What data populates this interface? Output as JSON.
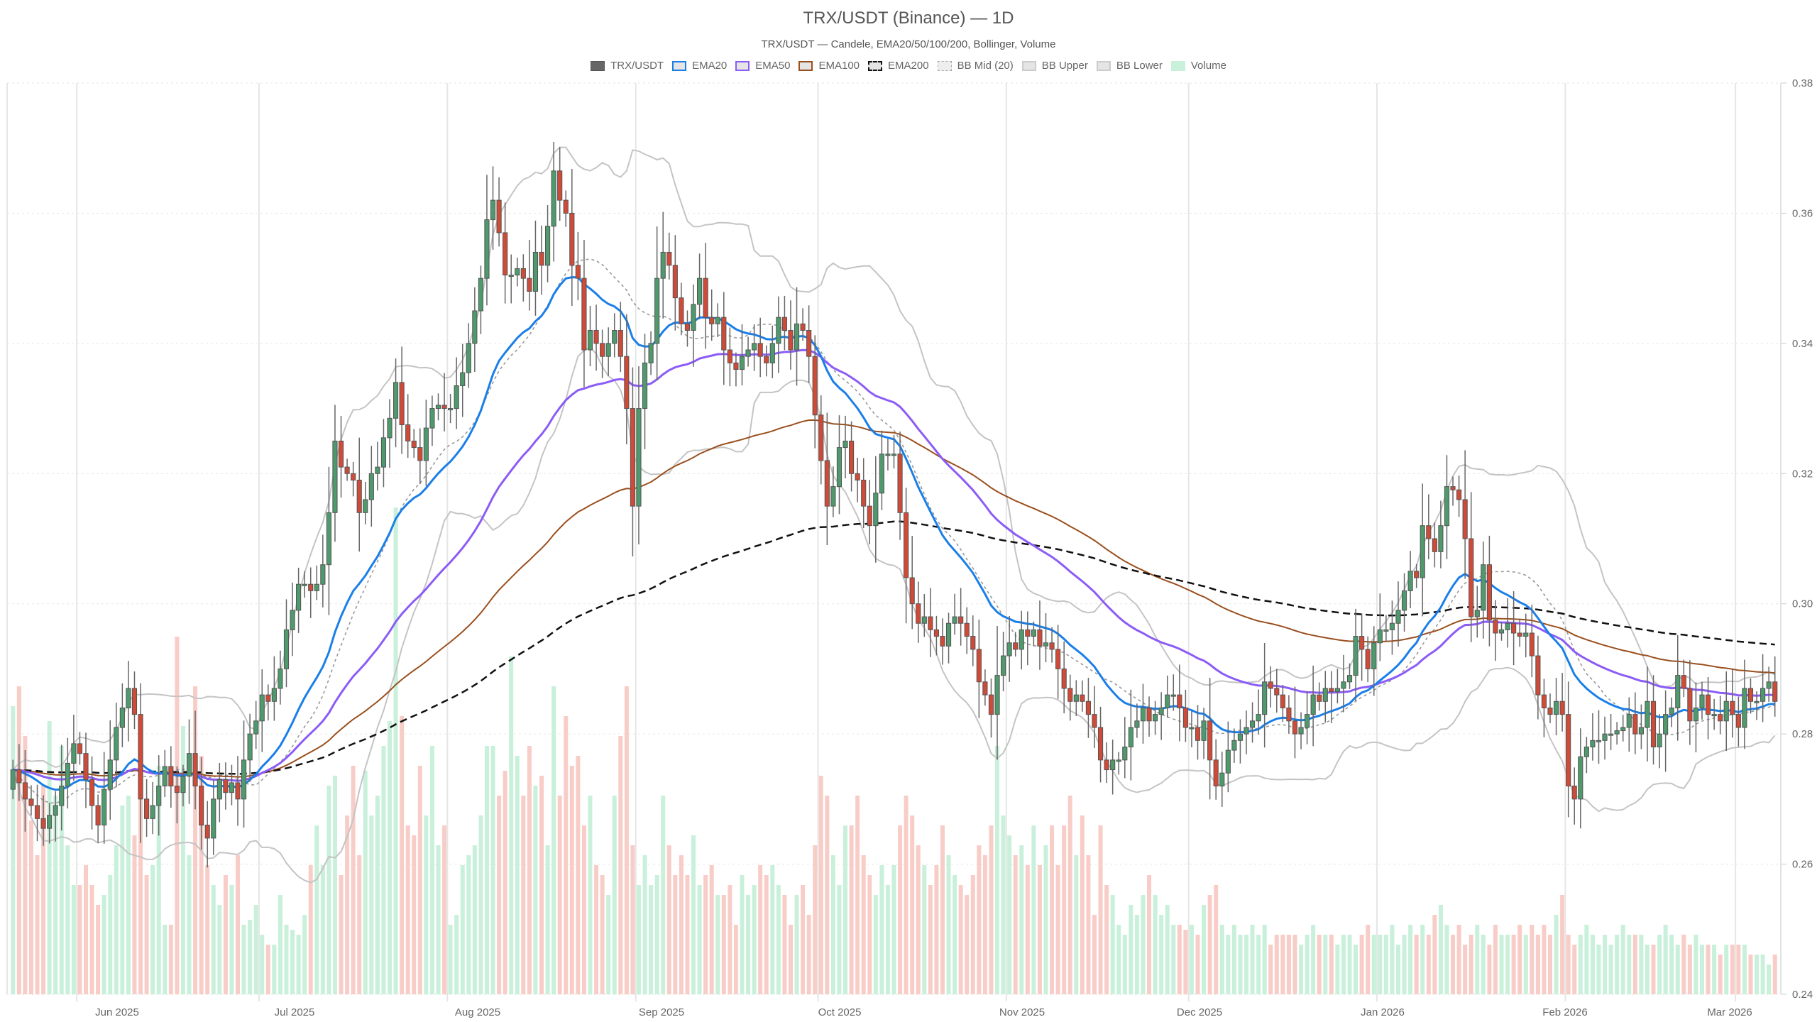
{
  "header": {
    "title": "TRX/USDT (Binance) — 1D",
    "subtitle": "TRX/USDT — Candele, EMA20/50/100/200, Bollinger, Volume"
  },
  "legend": [
    {
      "label": "TRX/USDT",
      "swatch": "solid",
      "fill": "#666666",
      "border": "#555555"
    },
    {
      "label": "EMA20",
      "swatch": "outline",
      "fill": "#e5e5e5",
      "border": "#1a7fe8"
    },
    {
      "label": "EMA50",
      "swatch": "outline",
      "fill": "#e5e5e5",
      "border": "#8b5cf6"
    },
    {
      "label": "EMA100",
      "swatch": "outline",
      "fill": "#e5e5e5",
      "border": "#9a4f1e"
    },
    {
      "label": "EMA200",
      "swatch": "dashed",
      "fill": "#e5e5e5",
      "border": "#111111"
    },
    {
      "label": "BB Mid (20)",
      "swatch": "dotted",
      "fill": "#eeeeee",
      "border": "#aaaaaa"
    },
    {
      "label": "BB Upper",
      "swatch": "outline",
      "fill": "#e5e5e5",
      "border": "#cccccc"
    },
    {
      "label": "BB Lower",
      "swatch": "outline",
      "fill": "#e5e5e5",
      "border": "#cccccc"
    },
    {
      "label": "Volume",
      "swatch": "solid",
      "fill": "#c8f0da",
      "border": "#c8f0da"
    }
  ],
  "colors": {
    "up": "#4e9a6c",
    "down": "#d04a38",
    "wick": "#666666",
    "candle_border": "#555555",
    "ema20": "#1a7fe8",
    "ema50": "#8b5cf6",
    "ema100": "#9a4f1e",
    "ema200": "#111111",
    "bb_mid": "#999999",
    "bb_band": "#c4c4c4",
    "vol_up": "#c8f0da",
    "vol_down": "#f8cdc7",
    "grid": "#e6e6e6"
  },
  "chart_data": {
    "type": "candlestick",
    "title": "TRX/USDT (Binance) — 1D",
    "subtitle": "TRX/USDT — Candele, EMA20/50/100/200, Bollinger, Volume",
    "xlabel": "",
    "ylabel": "",
    "ylim": [
      0.24,
      0.38
    ],
    "yticks": [
      "0.24",
      "0.26",
      "0.28",
      "0.30",
      "0.32",
      "0.34",
      "0.36",
      "0.38"
    ],
    "xticks": [
      "Jun 2025",
      "Jul 2025",
      "Aug 2025",
      "Sep 2025",
      "Oct 2025",
      "Nov 2025",
      "Dec 2025",
      "Jan 2026",
      "Feb 2026",
      "Mar 2026"
    ],
    "grid": true,
    "legend_position": "top",
    "start_date": "2025-05-21",
    "interval": "1D",
    "series_names": [
      "TRX/USDT",
      "EMA20",
      "EMA50",
      "EMA100",
      "EMA200",
      "BB Mid (20)",
      "BB Upper",
      "BB Lower",
      "Volume"
    ],
    "close": [
      0.2745,
      0.2725,
      0.27,
      0.269,
      0.267,
      0.2655,
      0.2675,
      0.269,
      0.272,
      0.2755,
      0.2785,
      0.277,
      0.273,
      0.269,
      0.266,
      0.2715,
      0.276,
      0.281,
      0.284,
      0.287,
      0.283,
      0.27,
      0.267,
      0.269,
      0.272,
      0.275,
      0.272,
      0.271,
      0.2735,
      0.277,
      0.272,
      0.266,
      0.264,
      0.27,
      0.273,
      0.271,
      0.2725,
      0.27,
      0.276,
      0.28,
      0.282,
      0.286,
      0.285,
      0.287,
      0.29,
      0.296,
      0.299,
      0.303,
      0.303,
      0.302,
      0.303,
      0.306,
      0.314,
      0.325,
      0.321,
      0.32,
      0.319,
      0.314,
      0.316,
      0.32,
      0.321,
      0.3255,
      0.3285,
      0.334,
      0.3275,
      0.325,
      0.324,
      0.322,
      0.327,
      0.33,
      0.3305,
      0.33,
      0.33,
      0.3335,
      0.3355,
      0.34,
      0.345,
      0.35,
      0.359,
      0.362,
      0.357,
      0.3505,
      0.3505,
      0.3515,
      0.35,
      0.348,
      0.354,
      0.352,
      0.358,
      0.3665,
      0.362,
      0.36,
      0.352,
      0.35,
      0.339,
      0.342,
      0.34,
      0.338,
      0.34,
      0.342,
      0.338,
      0.33,
      0.315,
      0.33,
      0.337,
      0.34,
      0.35,
      0.354,
      0.352,
      0.347,
      0.343,
      0.342,
      0.346,
      0.35,
      0.344,
      0.343,
      0.344,
      0.339,
      0.337,
      0.336,
      0.338,
      0.339,
      0.34,
      0.338,
      0.337,
      0.34,
      0.344,
      0.342,
      0.339,
      0.343,
      0.342,
      0.338,
      0.329,
      0.322,
      0.315,
      0.318,
      0.324,
      0.325,
      0.32,
      0.319,
      0.315,
      0.312,
      0.317,
      0.323,
      0.323,
      0.323,
      0.314,
      0.304,
      0.3,
      0.297,
      0.298,
      0.296,
      0.295,
      0.2935,
      0.297,
      0.298,
      0.297,
      0.295,
      0.293,
      0.288,
      0.286,
      0.283,
      0.289,
      0.292,
      0.294,
      0.293,
      0.296,
      0.295,
      0.296,
      0.2935,
      0.294,
      0.293,
      0.29,
      0.287,
      0.285,
      0.286,
      0.285,
      0.283,
      0.281,
      0.276,
      0.2745,
      0.276,
      0.276,
      0.278,
      0.281,
      0.282,
      0.284,
      0.282,
      0.283,
      0.284,
      0.286,
      0.286,
      0.284,
      0.281,
      0.281,
      0.279,
      0.282,
      0.276,
      0.272,
      0.274,
      0.2775,
      0.279,
      0.28,
      0.281,
      0.282,
      0.283,
      0.288,
      0.287,
      0.286,
      0.284,
      0.282,
      0.28,
      0.281,
      0.283,
      0.286,
      0.285,
      0.287,
      0.2865,
      0.287,
      0.288,
      0.289,
      0.295,
      0.293,
      0.29,
      0.294,
      0.296,
      0.296,
      0.297,
      0.299,
      0.302,
      0.305,
      0.304,
      0.312,
      0.31,
      0.308,
      0.312,
      0.318,
      0.3175,
      0.316,
      0.31,
      0.298,
      0.299,
      0.306,
      0.2975,
      0.2955,
      0.296,
      0.297,
      0.2955,
      0.295,
      0.2955,
      0.292,
      0.286,
      0.284,
      0.283,
      0.285,
      0.283,
      0.272,
      0.27,
      0.2765,
      0.278,
      0.279,
      0.279,
      0.28,
      0.28,
      0.2805,
      0.281,
      0.283,
      0.28,
      0.281,
      0.285,
      0.278,
      0.28,
      0.283,
      0.284,
      0.289,
      0.287,
      0.282,
      0.284,
      0.286,
      0.283,
      0.283,
      0.282,
      0.285,
      0.283,
      0.281,
      0.287,
      0.285,
      0.285,
      0.287,
      0.288,
      0.285
    ],
    "volume_relative": [
      0.58,
      0.62,
      0.52,
      0.35,
      0.28,
      0.42,
      0.55,
      0.4,
      0.5,
      0.3,
      0.22,
      0.22,
      0.26,
      0.22,
      0.18,
      0.2,
      0.24,
      0.3,
      0.38,
      0.4,
      0.32,
      0.5,
      0.24,
      0.26,
      0.46,
      0.14,
      0.14,
      0.72,
      0.54,
      0.28,
      0.62,
      0.48,
      0.26,
      0.22,
      0.18,
      0.24,
      0.22,
      0.28,
      0.14,
      0.15,
      0.18,
      0.12,
      0.1,
      0.1,
      0.2,
      0.14,
      0.13,
      0.12,
      0.16,
      0.26,
      0.34,
      0.26,
      0.42,
      0.44,
      0.24,
      0.36,
      0.46,
      0.28,
      0.45,
      0.36,
      0.4,
      0.5,
      0.55,
      0.98,
      0.56,
      0.34,
      0.32,
      0.46,
      0.36,
      0.5,
      0.3,
      0.34,
      0.14,
      0.16,
      0.26,
      0.28,
      0.3,
      0.36,
      0.5,
      0.5,
      0.4,
      0.45,
      0.68,
      0.48,
      0.4,
      0.5,
      0.42,
      0.44,
      0.3,
      0.62,
      0.4,
      0.56,
      0.46,
      0.48,
      0.34,
      0.4,
      0.26,
      0.24,
      0.2,
      0.4,
      0.52,
      0.62,
      0.3,
      0.22,
      0.28,
      0.22,
      0.24,
      0.4,
      0.3,
      0.24,
      0.28,
      0.24,
      0.32,
      0.22,
      0.24,
      0.26,
      0.2,
      0.2,
      0.22,
      0.14,
      0.24,
      0.2,
      0.22,
      0.26,
      0.24,
      0.26,
      0.22,
      0.2,
      0.14,
      0.2,
      0.22,
      0.16,
      0.3,
      0.44,
      0.4,
      0.28,
      0.22,
      0.34,
      0.34,
      0.4,
      0.28,
      0.24,
      0.2,
      0.26,
      0.22,
      0.26,
      0.34,
      0.4,
      0.36,
      0.3,
      0.26,
      0.22,
      0.26,
      0.34,
      0.28,
      0.24,
      0.22,
      0.2,
      0.24,
      0.3,
      0.28,
      0.34,
      0.5,
      0.36,
      0.32,
      0.28,
      0.3,
      0.26,
      0.34,
      0.26,
      0.3,
      0.34,
      0.26,
      0.34,
      0.4,
      0.28,
      0.36,
      0.28,
      0.16,
      0.34,
      0.22,
      0.2,
      0.14,
      0.12,
      0.18,
      0.16,
      0.2,
      0.24,
      0.2,
      0.16,
      0.18,
      0.14,
      0.14,
      0.13,
      0.14,
      0.12,
      0.18,
      0.2,
      0.22,
      0.14,
      0.12,
      0.14,
      0.12,
      0.12,
      0.14,
      0.12,
      0.14,
      0.1,
      0.12,
      0.12,
      0.12,
      0.12,
      0.1,
      0.12,
      0.14,
      0.12,
      0.12,
      0.12,
      0.1,
      0.12,
      0.12,
      0.1,
      0.12,
      0.14,
      0.12,
      0.12,
      0.12,
      0.14,
      0.1,
      0.12,
      0.14,
      0.12,
      0.14,
      0.12,
      0.16,
      0.18,
      0.14,
      0.12,
      0.14,
      0.1,
      0.12,
      0.14,
      0.12,
      0.1,
      0.14,
      0.12,
      0.12,
      0.12,
      0.14,
      0.12,
      0.14,
      0.12,
      0.14,
      0.12,
      0.16,
      0.2,
      0.12,
      0.1,
      0.12,
      0.14,
      0.12,
      0.1,
      0.12,
      0.1,
      0.12,
      0.14,
      0.12,
      0.12,
      0.12,
      0.1,
      0.1,
      0.12,
      0.14,
      0.12,
      0.1,
      0.12,
      0.1,
      0.12,
      0.1,
      0.1,
      0.1,
      0.08,
      0.1,
      0.1,
      0.1,
      0.1,
      0.08,
      0.08,
      0.08,
      0.06,
      0.08
    ]
  }
}
